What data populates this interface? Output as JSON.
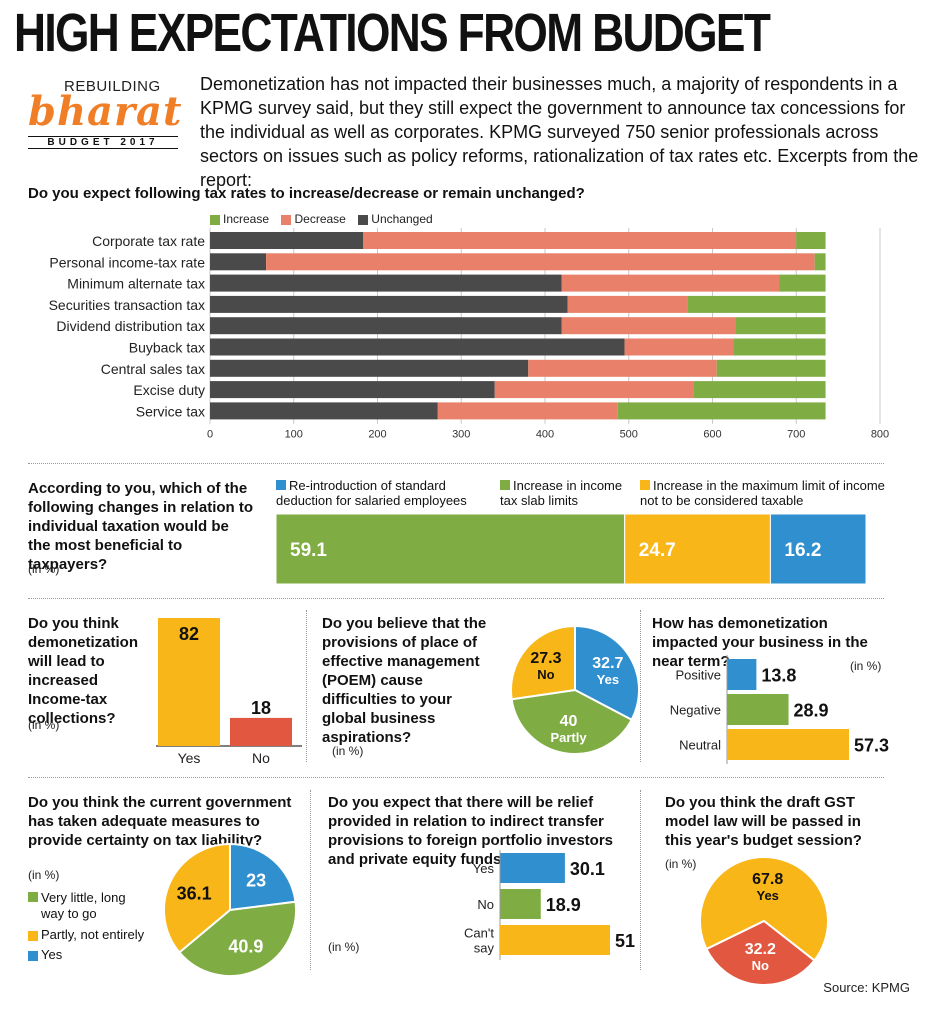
{
  "headline": "HIGH EXPECTATIONS FROM BUDGET",
  "logo": {
    "top": "REBUILDING",
    "main": "bharat",
    "bottom": "BUDGET 2017"
  },
  "intro": "Demonetization has not impacted their businesses much, a majority of respondents in a KPMG survey said, but they still expect the government to announce tax concessions for the individual as well as corporates. KPMG surveyed 750 senior professionals across sectors on issues such as policy reforms, rationalization of tax rates etc. Excerpts from the report:",
  "colors": {
    "green": "#7fac43",
    "salmon": "#e8806a",
    "dark": "#4a4a4a",
    "yellow": "#f8b618",
    "blue": "#2f8fcf",
    "red": "#e1573f"
  },
  "source": "Source: KPMG",
  "chart_data": [
    {
      "id": "tax-rates",
      "type": "bar",
      "orientation": "horizontal",
      "stacked": true,
      "title": "Do you expect following tax rates to increase/decrease or remain unchanged?",
      "categories": [
        "Corporate tax rate",
        "Personal income-tax rate",
        "Minimum alternate tax",
        "Securities transaction tax",
        "Dividend distribution tax",
        "Buyback tax",
        "Central sales tax",
        "Excise duty",
        "Service tax"
      ],
      "series": [
        {
          "name": "Unchanged",
          "color": "#4a4a4a",
          "values": [
            183,
            67,
            420,
            427,
            420,
            495,
            380,
            340,
            272
          ]
        },
        {
          "name": "Decrease",
          "color": "#e8806a",
          "values": [
            517,
            655,
            260,
            143,
            207,
            130,
            225,
            237,
            215
          ]
        },
        {
          "name": "Increase",
          "color": "#7fac43",
          "values": [
            35,
            13,
            55,
            165,
            108,
            110,
            130,
            158,
            248
          ]
        }
      ],
      "legend_order": [
        "Increase",
        "Decrease",
        "Unchanged"
      ],
      "xlim": [
        0,
        800
      ],
      "xticks": [
        "0",
        "100",
        "200",
        "300",
        "400",
        "500",
        "600",
        "700",
        "800"
      ],
      "grid": true,
      "legend": "top-left"
    },
    {
      "id": "taxation-changes",
      "type": "bar",
      "orientation": "horizontal",
      "stacked": true,
      "title": "According to you, which of the following changes in relation to individual taxation would be the most beneficial to taxpayers?",
      "unit": "(in %)",
      "legend": [
        {
          "name": "Re-introduction of standard deduction for salaried employees",
          "color": "#2f8fcf"
        },
        {
          "name": "Increase in income tax slab limits",
          "color": "#7fac43"
        },
        {
          "name": "Increase in the maximum limit of income not to be considered taxable",
          "color": "#f8b618"
        }
      ],
      "segments": [
        {
          "label": "59.1",
          "value": 59.1,
          "color": "#7fac43"
        },
        {
          "label": "24.7",
          "value": 24.7,
          "color": "#f8b618"
        },
        {
          "label": "16.2",
          "value": 16.2,
          "color": "#2f8fcf"
        }
      ]
    },
    {
      "id": "demonetization-collections",
      "type": "bar",
      "title": "Do you think demonetization will lead to increased Income-tax collections?",
      "unit": "(in %)",
      "categories": [
        "Yes",
        "No"
      ],
      "values": [
        82,
        18
      ],
      "labels": [
        "82",
        "18"
      ],
      "colors": [
        "#f8b618",
        "#e1573f"
      ],
      "ylim": [
        0,
        82
      ]
    },
    {
      "id": "poem",
      "type": "pie",
      "title": "Do you believe that the provisions of place of effective management (POEM) cause difficulties to your global business aspirations?",
      "unit": "(in %)",
      "slices": [
        {
          "value": 32.7,
          "num": "32.7",
          "name": "Yes",
          "color": "#2f8fcf"
        },
        {
          "value": 40,
          "num": "40",
          "name": "Partly",
          "color": "#7fac43"
        },
        {
          "value": 27.3,
          "num": "27.3",
          "name": "No",
          "color": "#f8b618"
        }
      ]
    },
    {
      "id": "demonetization-impact",
      "type": "bar",
      "orientation": "horizontal",
      "title": "How has demonetization impacted your business in the near term?",
      "unit": "(in %)",
      "categories": [
        "Positive",
        "Negative",
        "Neutral"
      ],
      "values": [
        13.8,
        28.9,
        57.3
      ],
      "labels": [
        "13.8",
        "28.9",
        "57.3"
      ],
      "colors": [
        "#2f8fcf",
        "#7fac43",
        "#f8b618"
      ],
      "xlim": [
        0,
        57.3
      ]
    },
    {
      "id": "tax-certainty",
      "type": "pie",
      "title": "Do you think the current government has taken adequate measures to provide certainty on tax liability?",
      "unit": "(in %)",
      "legend": [
        {
          "name": "Very little, long way to go",
          "color": "#7fac43"
        },
        {
          "name": "Partly, not entirely",
          "color": "#f8b618"
        },
        {
          "name": "Yes",
          "color": "#2f8fcf"
        }
      ],
      "slices": [
        {
          "value": 23,
          "num": "23",
          "color": "#2f8fcf"
        },
        {
          "value": 40.9,
          "num": "40.9",
          "color": "#7fac43"
        },
        {
          "value": 36.1,
          "num": "36.1",
          "color": "#f8b618"
        }
      ]
    },
    {
      "id": "indirect-transfer",
      "type": "bar",
      "orientation": "horizontal",
      "title": "Do you expect that there will be relief provided in relation to indirect transfer provisions to foreign portfolio investors and private equity funds?",
      "unit": "(in %)",
      "categories": [
        "Yes",
        "No",
        "Can't say"
      ],
      "values": [
        30.1,
        18.9,
        51
      ],
      "labels": [
        "30.1",
        "18.9",
        "51"
      ],
      "colors": [
        "#2f8fcf",
        "#7fac43",
        "#f8b618"
      ],
      "xlim": [
        0,
        51
      ]
    },
    {
      "id": "gst",
      "type": "pie",
      "title": "Do you think the draft GST model law will be passed in this year's budget session?",
      "unit": "(in %)",
      "slices": [
        {
          "value": 67.8,
          "num": "67.8",
          "name": "Yes",
          "color": "#f8b618"
        },
        {
          "value": 32.2,
          "num": "32.2",
          "name": "No",
          "color": "#e1573f"
        }
      ]
    }
  ]
}
